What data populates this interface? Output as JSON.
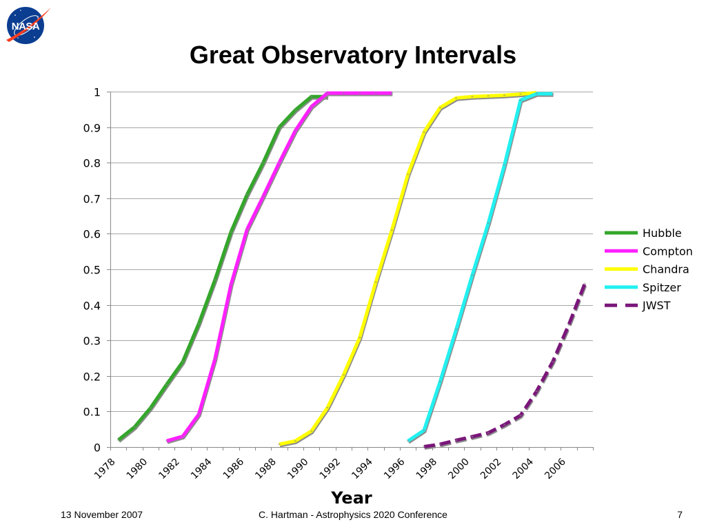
{
  "logo": {
    "label": "NASA",
    "icon": "nasa-logo-icon"
  },
  "footer": {
    "date": "13 November 2007",
    "presenter": "C. Hartman - Astrophysics 2020 Conference",
    "page_number": "7"
  },
  "chart_data": {
    "type": "line",
    "title": "Great Observatory Intervals",
    "xlabel": "Year",
    "ylabel": "",
    "categories": [
      "1978",
      "1979",
      "1980",
      "1981",
      "1982",
      "1983",
      "1984",
      "1985",
      "1986",
      "1987",
      "1988",
      "1989",
      "1990",
      "1991",
      "1992",
      "1993",
      "1994",
      "1995",
      "1996",
      "1997",
      "1998",
      "1999",
      "2000",
      "2001",
      "2002",
      "2003",
      "2004",
      "2005",
      "2006",
      "2007"
    ],
    "x_tick_labels": [
      "1978",
      "1980",
      "1982",
      "1984",
      "1986",
      "1988",
      "1990",
      "1992",
      "1994",
      "1996",
      "1998",
      "2000",
      "2002",
      "2004",
      "2006"
    ],
    "y_ticks": [
      0,
      0.1,
      0.2,
      0.3,
      0.4,
      0.5,
      0.6,
      0.7,
      0.8,
      0.9,
      1
    ],
    "y_tick_labels": [
      "0",
      "0.1",
      "0.2",
      "0.3",
      "0.4",
      "0.5",
      "0.6",
      "0.7",
      "0.8",
      "0.9",
      "1"
    ],
    "ylim": [
      0,
      1
    ],
    "grid": true,
    "legend_position": "right",
    "series": [
      {
        "name": "Hubble",
        "color": "#34a62b",
        "dashed": false,
        "x": [
          1978,
          1979,
          1980,
          1981,
          1982,
          1983,
          1984,
          1985,
          1986,
          1987,
          1988,
          1989,
          1990,
          1991
        ],
        "y": [
          0.02,
          0.056,
          0.11,
          0.176,
          0.24,
          0.347,
          0.47,
          0.605,
          0.71,
          0.8,
          0.9,
          0.948,
          0.986,
          0.986
        ]
      },
      {
        "name": "Compton",
        "color": "#ff20ff",
        "dashed": false,
        "x": [
          1981,
          1982,
          1983,
          1984,
          1985,
          1986,
          1987,
          1988,
          1989,
          1990,
          1991,
          1992,
          1993,
          1994,
          1995
        ],
        "y": [
          0.017,
          0.03,
          0.092,
          0.247,
          0.457,
          0.612,
          0.705,
          0.8,
          0.89,
          0.958,
          0.996,
          0.996,
          0.996,
          0.996,
          0.996
        ]
      },
      {
        "name": "Chandra",
        "color": "#ffff00",
        "dashed": false,
        "x": [
          1988,
          1989,
          1990,
          1991,
          1992,
          1993,
          1994,
          1995,
          1996,
          1997,
          1998,
          1999,
          2000,
          2001,
          2002,
          2003,
          2004
        ],
        "y": [
          0.008,
          0.017,
          0.045,
          0.111,
          0.203,
          0.308,
          0.464,
          0.61,
          0.767,
          0.886,
          0.955,
          0.982,
          0.986,
          0.988,
          0.99,
          0.993,
          0.997
        ]
      },
      {
        "name": "Spitzer",
        "color": "#22f0f0",
        "dashed": false,
        "x": [
          1996,
          1997,
          1998,
          1999,
          2000,
          2001,
          2002,
          2003,
          2004,
          2005
        ],
        "y": [
          0.017,
          0.047,
          0.184,
          0.331,
          0.484,
          0.63,
          0.794,
          0.976,
          0.994,
          0.994
        ]
      },
      {
        "name": "JWST",
        "color": "#7a167a",
        "dashed": true,
        "x": [
          1997,
          1998,
          1999,
          2000,
          2001,
          2002,
          2003,
          2004,
          2005,
          2006,
          2007
        ],
        "y": [
          0.001,
          0.008,
          0.019,
          0.029,
          0.04,
          0.063,
          0.089,
          0.157,
          0.24,
          0.344,
          0.46
        ]
      }
    ]
  }
}
